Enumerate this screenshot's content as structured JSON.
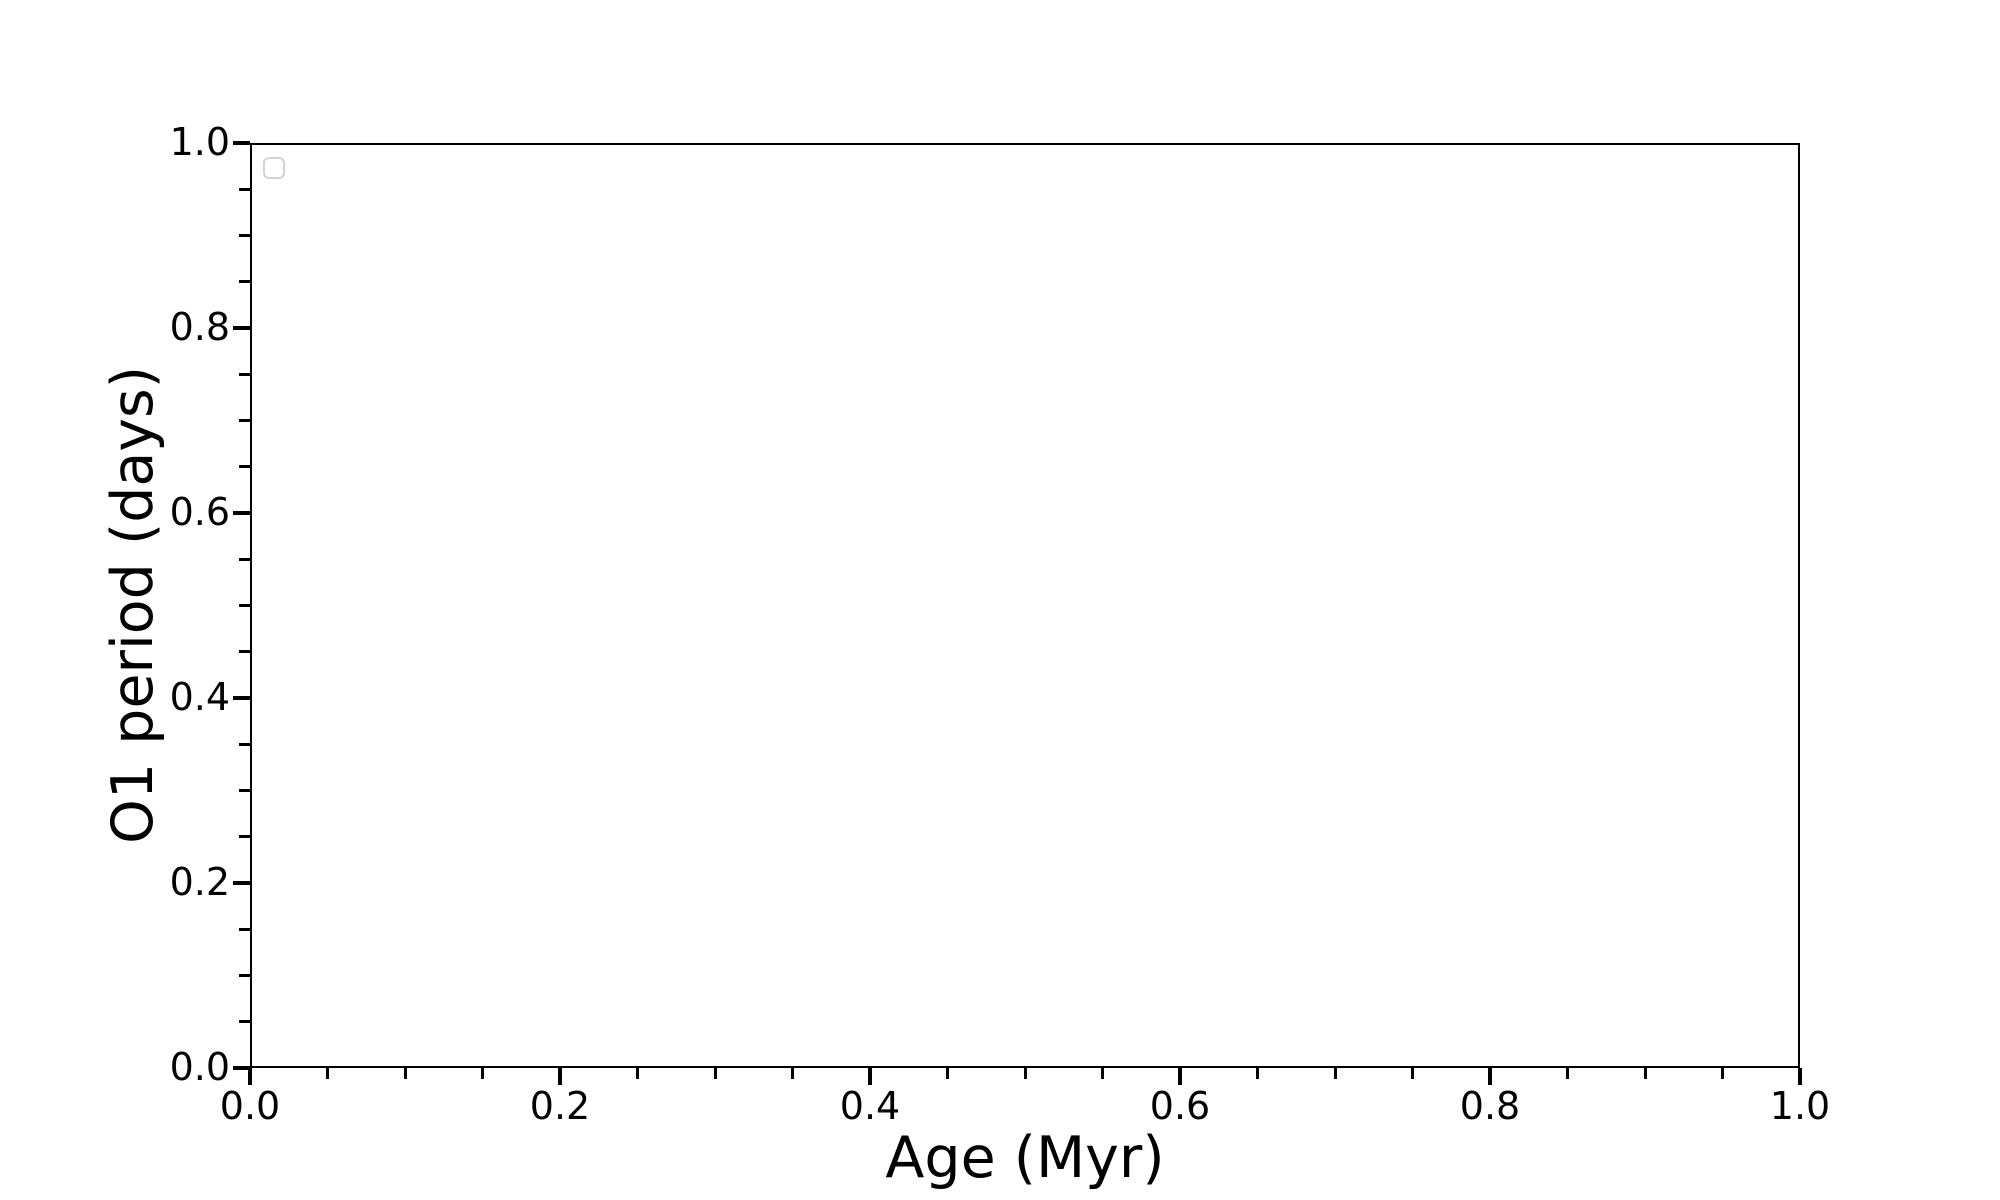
{
  "chart_data": {
    "type": "scatter",
    "title": "",
    "xlabel": "Age (Myr)",
    "ylabel": "O1 period (days)",
    "xlim": [
      0.0,
      1.0
    ],
    "ylim": [
      0.0,
      1.0
    ],
    "x_tick_labels": [
      "0.0",
      "0.2",
      "0.4",
      "0.6",
      "0.8",
      "1.0"
    ],
    "y_tick_labels": [
      "0.0",
      "0.2",
      "0.4",
      "0.6",
      "0.8",
      "1.0"
    ],
    "minor_ticks_per_interval": 3,
    "grid": false,
    "legend": {
      "visible": true,
      "position": "upper left",
      "entries": []
    },
    "series": [],
    "colors": {
      "background": "#ffffff",
      "spine": "#000000",
      "tick": "#000000",
      "text": "#000000",
      "legend_border": "#d4d4d4"
    }
  }
}
